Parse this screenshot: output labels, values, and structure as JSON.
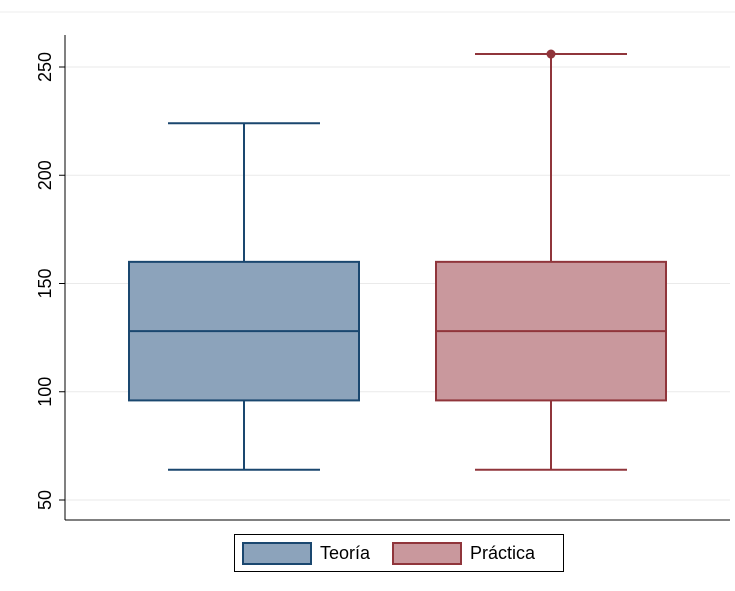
{
  "chart_data": {
    "type": "box",
    "title": "",
    "xlabel": "",
    "ylabel": "",
    "ylim": [
      45,
      265
    ],
    "yticks": [
      50,
      100,
      150,
      200,
      250
    ],
    "grid": true,
    "legend_position": "bottom",
    "series": [
      {
        "name": "Teoría",
        "whisker_low": 64,
        "q1": 96,
        "median": 128,
        "q3": 160,
        "whisker_high": 224,
        "outliers": [],
        "fill": "#8ca3bb",
        "stroke": "#1a476f"
      },
      {
        "name": "Práctica",
        "whisker_low": 64,
        "q1": 96,
        "median": 128,
        "q3": 160,
        "whisker_high": 256,
        "outliers": [
          256
        ],
        "fill": "#c9989d",
        "stroke": "#90353b"
      }
    ]
  },
  "legend": {
    "items": [
      {
        "label": "Teoría",
        "fill": "#8ca3bb",
        "stroke": "#1a476f"
      },
      {
        "label": "Práctica",
        "fill": "#c9989d",
        "stroke": "#90353b"
      }
    ]
  }
}
